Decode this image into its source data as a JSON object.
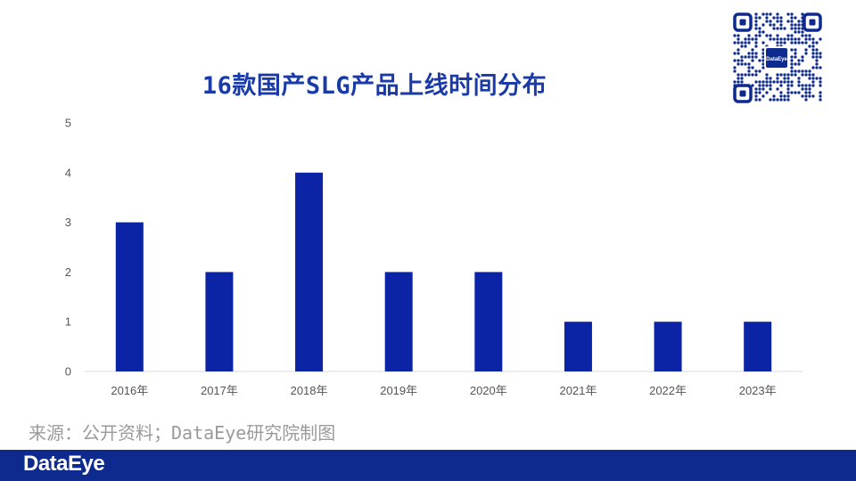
{
  "title": "16款国产SLG产品上线时间分布",
  "source": "来源：公开资料；DataEye研究院制图",
  "footer": {
    "logo_text": "DataEye"
  },
  "qr": {
    "center_label": "DataEye"
  },
  "colors": {
    "bar": "#0b24a6",
    "title": "#1a3aa8",
    "footer": "#0e2a8e",
    "axis": "#d9d9d9"
  },
  "chart_data": {
    "type": "bar",
    "title": "16款国产SLG产品上线时间分布",
    "categories": [
      "2016年",
      "2017年",
      "2018年",
      "2019年",
      "2020年",
      "2021年",
      "2022年",
      "2023年"
    ],
    "values": [
      3,
      2,
      4,
      2,
      2,
      1,
      1,
      1
    ],
    "yticks": [
      0,
      1,
      2,
      3,
      4,
      5
    ],
    "ylim": [
      0,
      5
    ],
    "xlabel": "",
    "ylabel": "",
    "grid": false,
    "legend": "none"
  }
}
